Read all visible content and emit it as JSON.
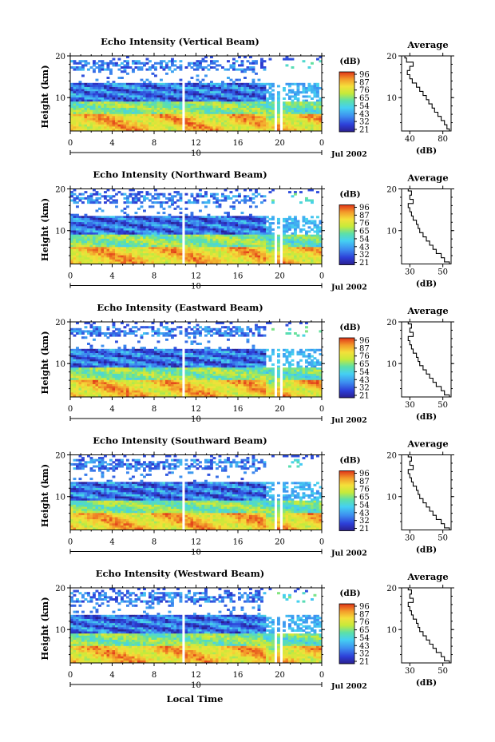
{
  "chart_data": {
    "type": "heatmap",
    "x_axis_title": "Local Time",
    "colorbar_ticks": [
      "96",
      "87",
      "76",
      "65",
      "54",
      "43",
      "32",
      "21"
    ],
    "panels": [
      {
        "title": "Echo Intensity (Vertical Beam)",
        "ylabel": "Height (km)",
        "yticks": [
          "20",
          "10"
        ],
        "ylim": [
          2,
          20
        ],
        "xticks": [
          "0",
          "4",
          "8",
          "12",
          "16",
          "20",
          "0"
        ],
        "xlim": [
          0,
          24
        ],
        "date_tick": "10",
        "date_label": "Jul 2002",
        "colorbar_unit": "(dB)",
        "colorbar_ticks": [
          "96",
          "87",
          "76",
          "65",
          "54",
          "43",
          "32",
          "21"
        ],
        "profile_title": "Average",
        "profile_xlabel": "(dB)",
        "profile_xticks": [
          "40",
          "80"
        ],
        "profile_xlim": [
          30,
          90
        ],
        "profile_yticks": [
          "20",
          "10"
        ],
        "profile": {
          "height": [
            2,
            3,
            4,
            5,
            6,
            7,
            8,
            9,
            10,
            11,
            12,
            13,
            14,
            15,
            16,
            17,
            18,
            19,
            20
          ],
          "db": [
            88,
            85,
            82,
            78,
            74,
            70,
            67,
            63,
            60,
            56,
            52,
            48,
            43,
            40,
            37,
            40,
            44,
            36,
            34
          ]
        }
      },
      {
        "title": "Echo Intensity (Northward Beam)",
        "ylabel": "Height (km)",
        "yticks": [
          "20",
          "10"
        ],
        "ylim": [
          2,
          20
        ],
        "xticks": [
          "0",
          "4",
          "8",
          "12",
          "16",
          "20",
          "0"
        ],
        "xlim": [
          0,
          24
        ],
        "date_tick": "10",
        "date_label": "Jul 2002",
        "colorbar_unit": "(dB)",
        "colorbar_ticks": [
          "96",
          "87",
          "76",
          "65",
          "54",
          "43",
          "32",
          "21"
        ],
        "profile_title": "Average",
        "profile_xlabel": "(dB)",
        "profile_xticks": [
          "30",
          "50"
        ],
        "profile_xlim": [
          25,
          55
        ],
        "profile_yticks": [
          "20",
          "10"
        ],
        "profile": {
          "height": [
            2,
            3,
            4,
            5,
            6,
            7,
            8,
            9,
            10,
            11,
            12,
            13,
            14,
            15,
            16,
            17,
            18,
            19,
            20
          ],
          "db": [
            54,
            51,
            49,
            46,
            44,
            42,
            40,
            38,
            36,
            35,
            34,
            32,
            31,
            30,
            29,
            32,
            30,
            31,
            29
          ]
        }
      },
      {
        "title": "Echo Intensity (Eastward Beam)",
        "ylabel": "Height (km)",
        "yticks": [
          "20",
          "10"
        ],
        "ylim": [
          2,
          20
        ],
        "xticks": [
          "0",
          "4",
          "8",
          "12",
          "16",
          "20",
          "0"
        ],
        "xlim": [
          0,
          24
        ],
        "date_tick": "10",
        "date_label": "Jul 2002",
        "colorbar_unit": "(dB)",
        "colorbar_ticks": [
          "96",
          "87",
          "76",
          "65",
          "54",
          "43",
          "32",
          "21"
        ],
        "profile_title": "Average",
        "profile_xlabel": "(dB)",
        "profile_xticks": [
          "30",
          "50"
        ],
        "profile_xlim": [
          25,
          55
        ],
        "profile_yticks": [
          "20",
          "10"
        ],
        "profile": {
          "height": [
            2,
            3,
            4,
            5,
            6,
            7,
            8,
            9,
            10,
            11,
            12,
            13,
            14,
            15,
            16,
            17,
            18,
            19,
            20
          ],
          "db": [
            54,
            51,
            49,
            46,
            44,
            42,
            40,
            38,
            36,
            35,
            34,
            32,
            31,
            30,
            29,
            32,
            30,
            31,
            29
          ]
        }
      },
      {
        "title": "Echo Intensity (Southward Beam)",
        "ylabel": "Height (km)",
        "yticks": [
          "20",
          "10"
        ],
        "ylim": [
          2,
          20
        ],
        "xticks": [
          "0",
          "4",
          "8",
          "12",
          "16",
          "20",
          "0"
        ],
        "xlim": [
          0,
          24
        ],
        "date_tick": "10",
        "date_label": "Jul 2002",
        "colorbar_unit": "(dB)",
        "colorbar_ticks": [
          "96",
          "87",
          "76",
          "65",
          "54",
          "43",
          "32",
          "21"
        ],
        "profile_title": "Average",
        "profile_xlabel": "(dB)",
        "profile_xticks": [
          "30",
          "50"
        ],
        "profile_xlim": [
          25,
          55
        ],
        "profile_yticks": [
          "20",
          "10"
        ],
        "profile": {
          "height": [
            2,
            3,
            4,
            5,
            6,
            7,
            8,
            9,
            10,
            11,
            12,
            13,
            14,
            15,
            16,
            17,
            18,
            19,
            20
          ],
          "db": [
            54,
            51,
            49,
            46,
            44,
            42,
            40,
            38,
            36,
            35,
            34,
            32,
            31,
            30,
            29,
            32,
            30,
            31,
            29
          ]
        }
      },
      {
        "title": "Echo Intensity (Westward Beam)",
        "ylabel": "Height (km)",
        "yticks": [
          "20",
          "10"
        ],
        "ylim": [
          2,
          20
        ],
        "xticks": [
          "0",
          "4",
          "8",
          "12",
          "16",
          "20",
          "0"
        ],
        "xlim": [
          0,
          24
        ],
        "date_tick": "10",
        "date_label": "Jul 2002",
        "colorbar_unit": "(dB)",
        "colorbar_ticks": [
          "96",
          "87",
          "76",
          "65",
          "54",
          "43",
          "32",
          "21"
        ],
        "profile_title": "Average",
        "profile_xlabel": "(dB)",
        "profile_xticks": [
          "30",
          "50"
        ],
        "profile_xlim": [
          25,
          55
        ],
        "profile_yticks": [
          "20",
          "10"
        ],
        "profile": {
          "height": [
            2,
            3,
            4,
            5,
            6,
            7,
            8,
            9,
            10,
            11,
            12,
            13,
            14,
            15,
            16,
            17,
            18,
            19,
            20
          ],
          "db": [
            54,
            51,
            49,
            46,
            44,
            42,
            40,
            38,
            36,
            35,
            34,
            32,
            31,
            30,
            29,
            32,
            30,
            31,
            29
          ]
        }
      }
    ]
  }
}
